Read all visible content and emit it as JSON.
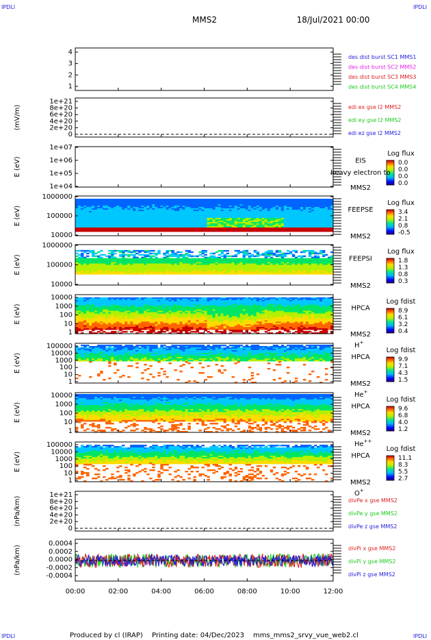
{
  "header": {
    "corner_label": "IPDLI",
    "title": "MMS2",
    "datetime": "18/Jul/2021 00:00"
  },
  "footer": {
    "produced_by": "Produced by cl (IRAP)",
    "printing_date": "Printing date: 04/Dec/2023",
    "file_name": "mms_mms2_srvy_vue_web2.cl"
  },
  "colors": {
    "blue": "#1e1edc",
    "magenta": "#e61ee6",
    "red": "#dc1e1e",
    "green": "#1ec81e"
  },
  "chart_data": [
    {
      "id": "p1",
      "type": "line",
      "ylabel": "",
      "yticks": [
        "4",
        "3",
        "2",
        "1"
      ],
      "legend": [
        {
          "name": "des dist burst SC1 MMS1",
          "color": "#1e1edc"
        },
        {
          "name": "des dist burst SC2 MMS2",
          "color": "#e61ee6"
        },
        {
          "name": "des dist burst SC3 MMS3",
          "color": "#dc1e1e"
        },
        {
          "name": "des dist burst SC4 MMS4",
          "color": "#1ec81e"
        }
      ],
      "series": []
    },
    {
      "id": "p2",
      "type": "line",
      "ylabel": "(mV/m)",
      "yticks": [
        "1e+21",
        "8e+20",
        "6e+20",
        "4e+20",
        "2e+20",
        "0"
      ],
      "zero_line": true,
      "legend": [
        {
          "name": "edi ex gse l2 MMS2",
          "color": "#dc1e1e"
        },
        {
          "name": "edi ey gse l2 MMS2",
          "color": "#1ec81e"
        },
        {
          "name": "edi ez gse l2 MMS2",
          "color": "#1e1edc"
        }
      ],
      "series": []
    },
    {
      "id": "p3",
      "type": "heatmap",
      "ylabel": "E (eV)",
      "yticks": [
        "1e+07",
        "1e+06",
        "1e+05",
        "1e+04"
      ],
      "instrument": [
        "EIS",
        "MMS2"
      ],
      "overlay_text": "heavy electron to",
      "colorbar": {
        "title": "Log flux",
        "ticks": [
          "0.0",
          "0.0",
          "0.0",
          "0.0"
        ]
      },
      "has_data": false
    },
    {
      "id": "p4",
      "type": "heatmap",
      "ylabel": "E (eV)",
      "yticks": [
        "1000000",
        "100000",
        "10000"
      ],
      "instrument": [
        "FEEPSE",
        "MMS2"
      ],
      "colorbar": {
        "title": "Log flux",
        "ticks": [
          "3.4",
          "2.1",
          "0.8",
          "-0.5"
        ]
      },
      "has_data": true
    },
    {
      "id": "p5",
      "type": "heatmap",
      "ylabel": "E (eV)",
      "yticks": [
        "1000000",
        "100000",
        "10000"
      ],
      "instrument": [
        "FEEPSI",
        "MMS2"
      ],
      "colorbar": {
        "title": "Log flux",
        "ticks": [
          "1.8",
          "1.3",
          "0.8",
          "0.3"
        ]
      },
      "has_data": true
    },
    {
      "id": "p6",
      "type": "heatmap",
      "ylabel": "E (eV)",
      "yticks": [
        "10000",
        "1000",
        "100",
        "10",
        "1"
      ],
      "instrument": [
        "HPCA",
        "MMS2"
      ],
      "species": {
        "base": "H",
        "sup": "+"
      },
      "colorbar": {
        "title": "Log fdist",
        "ticks": [
          "8.9",
          "6.1",
          "3.2",
          "0.4"
        ]
      },
      "has_data": true
    },
    {
      "id": "p7",
      "type": "heatmap",
      "ylabel": "E (eV)",
      "yticks": [
        "100000",
        "10000",
        "1000",
        "100",
        "10",
        "1"
      ],
      "instrument": [
        "HPCA",
        "MMS2"
      ],
      "species": {
        "base": "He",
        "sup": "+"
      },
      "colorbar": {
        "title": "Log fdist",
        "ticks": [
          "9.9",
          "7.1",
          "4.3",
          "1.5"
        ]
      },
      "has_data": true
    },
    {
      "id": "p8",
      "type": "heatmap",
      "ylabel": "E (eV)",
      "yticks": [
        "10000",
        "1000",
        "100",
        "10",
        "1"
      ],
      "instrument": [
        "HPCA",
        "MMS2"
      ],
      "species": {
        "base": "He",
        "sup": "++"
      },
      "colorbar": {
        "title": "Log fdist",
        "ticks": [
          "9.6",
          "6.8",
          "4.0",
          "1.2"
        ]
      },
      "has_data": true
    },
    {
      "id": "p9",
      "type": "heatmap",
      "ylabel": "E (eV)",
      "yticks": [
        "100000",
        "10000",
        "1000",
        "100",
        "10",
        "1"
      ],
      "instrument": [
        "HPCA",
        "MMS2"
      ],
      "species": {
        "base": "O",
        "sup": "+"
      },
      "colorbar": {
        "title": "Log fdist",
        "ticks": [
          "11.1",
          "8.3",
          "5.5",
          "2.7"
        ]
      },
      "has_data": true
    },
    {
      "id": "p10",
      "type": "line",
      "ylabel": "(nPa/km)",
      "yticks": [
        "1e+21",
        "8e+20",
        "6e+20",
        "4e+20",
        "2e+20",
        "0"
      ],
      "zero_line": true,
      "legend": [
        {
          "name": "divPe x gse MMS2",
          "color": "#dc1e1e"
        },
        {
          "name": "divPe y gse MMS2",
          "color": "#1ec81e"
        },
        {
          "name": "divPe z gse MMS2",
          "color": "#1e1edc"
        }
      ],
      "series": []
    },
    {
      "id": "p11",
      "type": "line",
      "ylabel": "(nPa/km)",
      "yticks": [
        "0.0004",
        "0.0002",
        "0.0000",
        "-0.0002",
        "-0.0004"
      ],
      "ylim": [
        -0.0005,
        0.0004
      ],
      "zero_line": true,
      "legend": [
        {
          "name": "divPi x gse MMS2",
          "color": "#dc1e1e"
        },
        {
          "name": "divPi y gse MMS2",
          "color": "#1ec81e"
        },
        {
          "name": "divPi z gse MMS2",
          "color": "#1e1edc"
        }
      ],
      "series": [
        {
          "name": "divPi x gse MMS2",
          "range": [
            -0.0002,
            0.0002
          ]
        },
        {
          "name": "divPi y gse MMS2",
          "range": [
            -0.0002,
            0.0002
          ]
        },
        {
          "name": "divPi z gse MMS2",
          "range": [
            -0.0002,
            0.0002
          ]
        }
      ]
    }
  ],
  "time_axis": {
    "ticks": [
      "00:00",
      "02:00",
      "04:00",
      "06:00",
      "08:00",
      "10:00",
      "12:00"
    ]
  }
}
